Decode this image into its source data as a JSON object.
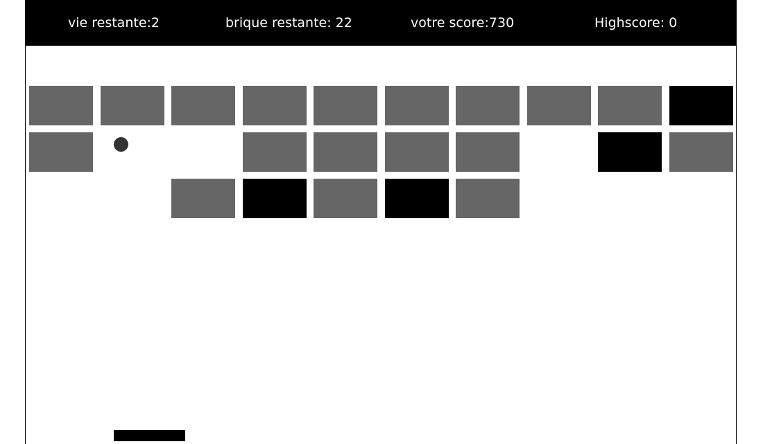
{
  "hud": {
    "lives_text": "vie restante:2",
    "bricks_text": "brique restante: 22",
    "score_text": "votre score:730",
    "highscore_text": "Highscore: 0"
  },
  "colors": {
    "hud_background": "#000000",
    "hud_text": "#ffffff",
    "brick_normal": "#666666",
    "brick_hard": "#000000",
    "ball": "#333333",
    "paddle": "#000000"
  },
  "brick_grid": {
    "columns": 10,
    "rows": [
      [
        "normal",
        "normal",
        "normal",
        "normal",
        "normal",
        "normal",
        "normal",
        "normal",
        "normal",
        "hard"
      ],
      [
        "normal",
        "empty",
        "empty",
        "normal",
        "normal",
        "normal",
        "normal",
        "empty",
        "hard",
        "normal"
      ],
      [
        "empty",
        "empty",
        "normal",
        "hard",
        "normal",
        "hard",
        "normal",
        "empty",
        "empty",
        "empty"
      ]
    ]
  }
}
